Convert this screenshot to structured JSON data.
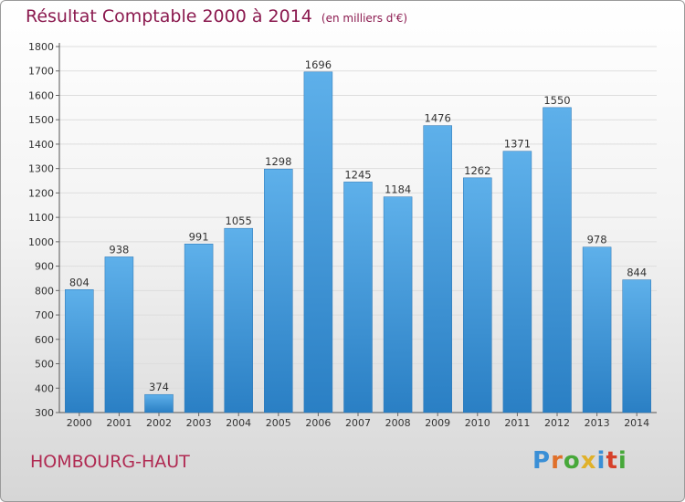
{
  "title": "Résultat Comptable 2000 à 2014",
  "unit_note": "(en milliers d'€)",
  "commune": "HOMBOURG-HAUT",
  "logo": {
    "letters": [
      "P",
      "r",
      "o",
      "x",
      "i",
      "t",
      "i"
    ],
    "colors": [
      "#3a8fd6",
      "#e0702a",
      "#47a83a",
      "#e0b12a",
      "#3a8fd6",
      "#d6402a",
      "#47a83a"
    ]
  },
  "colors": {
    "bar_top": "#5eb0ea",
    "bar_bottom": "#2a7fc4",
    "title": "#8b1a4f",
    "commune": "#b02a52",
    "grid": "#dddddd"
  },
  "chart_data": {
    "type": "bar",
    "title": "Résultat Comptable 2000 à 2014",
    "subtitle": "(en milliers d'€)",
    "xlabel": "",
    "ylabel": "",
    "categories": [
      "2000",
      "2001",
      "2002",
      "2003",
      "2004",
      "2005",
      "2006",
      "2007",
      "2008",
      "2009",
      "2010",
      "2011",
      "2012",
      "2013",
      "2014"
    ],
    "values": [
      804,
      938,
      374,
      991,
      1055,
      1298,
      1696,
      1245,
      1184,
      1476,
      1262,
      1371,
      1550,
      978,
      844
    ],
    "ylim": [
      300,
      1800
    ],
    "yticks": [
      300,
      400,
      500,
      600,
      700,
      800,
      900,
      1000,
      1100,
      1200,
      1300,
      1400,
      1500,
      1600,
      1700,
      1800
    ],
    "grid": true,
    "data_labels": true
  }
}
